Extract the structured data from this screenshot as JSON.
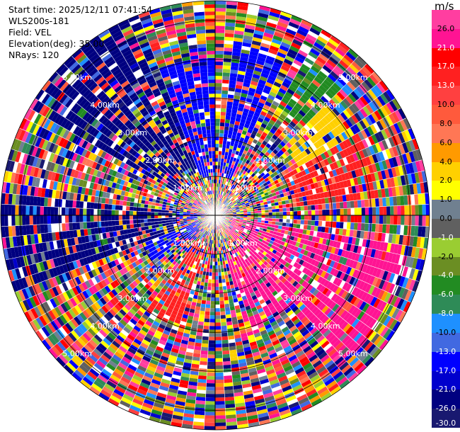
{
  "header": {
    "start_time": "Start time: 2025/12/11 07:41:54",
    "instrument": "WLS200s-181",
    "field": "Field: VEL",
    "elevation": "Elevation(deg): 35.00",
    "nrays": "NRays: 120"
  },
  "chart_data": {
    "type": "heatmap",
    "projection": "polar-ppi",
    "field": "VEL",
    "units": "m/s",
    "n_rays": 120,
    "elevation_deg": 35.0,
    "rings": [
      {
        "label": "1.00km",
        "range_km": 1.0
      },
      {
        "label": "2.00km",
        "range_km": 2.0
      },
      {
        "label": "3.00km",
        "range_km": 3.0
      },
      {
        "label": "4.00km",
        "range_km": 4.0
      },
      {
        "label": "5.00km",
        "range_km": 5.0
      }
    ],
    "max_range_km": 5.5,
    "colorbar": {
      "title": "m/s",
      "ticks": [
        "26.0",
        "21.0",
        "17.0",
        "13.0",
        "10.0",
        "8.0",
        "6.0",
        "4.0",
        "2.0",
        "1.0",
        "0.0",
        "-1.0",
        "-2.0",
        "-4.0",
        "-6.0",
        "-8.0",
        "-10.0",
        "-13.0",
        "-17.0",
        "-21.0",
        "-26.0",
        "-30.0"
      ],
      "segments": [
        {
          "from": 26,
          "to": 30,
          "color": "#ff3ea0"
        },
        {
          "from": 21,
          "to": 26,
          "color": "#ff1493"
        },
        {
          "from": 17,
          "to": 21,
          "color": "#ff0000"
        },
        {
          "from": 13,
          "to": 17,
          "color": "#ff2020"
        },
        {
          "from": 10,
          "to": 13,
          "color": "#ff4040"
        },
        {
          "from": 8,
          "to": 10,
          "color": "#ff5a3c"
        },
        {
          "from": 6,
          "to": 8,
          "color": "#ff7755"
        },
        {
          "from": 4,
          "to": 6,
          "color": "#ff9a00"
        },
        {
          "from": 2,
          "to": 4,
          "color": "#ffd000"
        },
        {
          "from": 1,
          "to": 2,
          "color": "#ffff00"
        },
        {
          "from": 0,
          "to": 1,
          "color": "#708090"
        },
        {
          "from": -1,
          "to": 0,
          "color": "#606060"
        },
        {
          "from": -2,
          "to": -1,
          "color": "#9acd32"
        },
        {
          "from": -4,
          "to": -2,
          "color": "#6b8e23"
        },
        {
          "from": -6,
          "to": -4,
          "color": "#228b22"
        },
        {
          "from": -8,
          "to": -6,
          "color": "#2e8b57"
        },
        {
          "from": -10,
          "to": -8,
          "color": "#1e90ff"
        },
        {
          "from": -13,
          "to": -10,
          "color": "#4169e1"
        },
        {
          "from": -17,
          "to": -13,
          "color": "#0000ff"
        },
        {
          "from": -21,
          "to": -17,
          "color": "#0000cd"
        },
        {
          "from": -26,
          "to": -21,
          "color": "#000080"
        },
        {
          "from": -30,
          "to": -26,
          "color": "#191970"
        }
      ]
    },
    "coherent_regions": [
      {
        "az_from": 300,
        "az_to": 340,
        "r_from": 1.2,
        "r_to": 5.5,
        "color": "#000080"
      },
      {
        "az_from": 250,
        "az_to": 275,
        "r_from": 1.0,
        "r_to": 5.5,
        "color": "#000080"
      },
      {
        "az_from": 340,
        "az_to": 360,
        "r_from": 1.0,
        "r_to": 4.0,
        "color": "#0000ff"
      },
      {
        "az_from": 5,
        "az_to": 25,
        "r_from": 1.0,
        "r_to": 4.5,
        "color": "#0000ff"
      },
      {
        "az_from": 30,
        "az_to": 45,
        "r_from": 3.2,
        "r_to": 4.6,
        "color": "#228b22"
      },
      {
        "az_from": 45,
        "az_to": 60,
        "r_from": 2.5,
        "r_to": 4.0,
        "color": "#ffd000"
      },
      {
        "az_from": 60,
        "az_to": 85,
        "r_from": 2.0,
        "r_to": 4.2,
        "color": "#ff2020"
      },
      {
        "az_from": 100,
        "az_to": 140,
        "r_from": 0.5,
        "r_to": 5.0,
        "color": "#ff1493"
      },
      {
        "az_from": 140,
        "az_to": 165,
        "r_from": 1.0,
        "r_to": 3.0,
        "color": "#ff1493"
      },
      {
        "az_from": 195,
        "az_to": 215,
        "r_from": 0.8,
        "r_to": 3.0,
        "color": "#ff2020"
      },
      {
        "az_from": 230,
        "az_to": 250,
        "r_from": 0.5,
        "r_to": 2.0,
        "color": "#0000ff"
      },
      {
        "az_from": 260,
        "az_to": 275,
        "r_from": 0.3,
        "r_to": 1.5,
        "color": "#0000ff"
      }
    ]
  }
}
